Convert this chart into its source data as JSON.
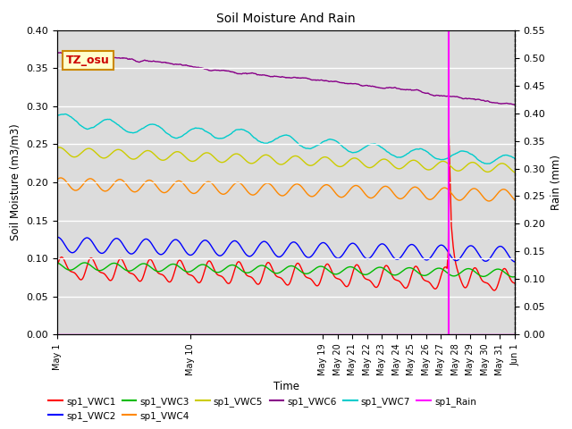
{
  "title": "Soil Moisture And Rain",
  "xlabel": "Time",
  "ylabel_left": "Soil Moisture (m3/m3)",
  "ylabel_right": "Rain (mm)",
  "ylim_left": [
    0.0,
    0.4
  ],
  "ylim_right": [
    0.0,
    0.55
  ],
  "bg_color": "#dcdcdc",
  "annotation_label": "TZ_osu",
  "vline_day": 26.5,
  "tick_days": [
    0,
    9,
    18,
    19,
    20,
    21,
    22,
    23,
    24,
    25,
    26,
    27,
    28,
    29,
    30,
    31
  ],
  "tick_labels": [
    "May 1",
    "May 10",
    "May 19",
    "May 20",
    "May 21",
    "May 22",
    "May 23",
    "May 24",
    "May 25",
    "May 26",
    "May 27",
    "May 28",
    "May 29",
    "May 30",
    "May 31",
    "Jun 1"
  ],
  "series_colors": {
    "sp1_VWC1": "#ff0000",
    "sp1_VWC2": "#0000ff",
    "sp1_VWC3": "#00bb00",
    "sp1_VWC4": "#ff8800",
    "sp1_VWC5": "#cccc00",
    "sp1_VWC6": "#880088",
    "sp1_VWC7": "#00cccc",
    "sp1_Rain": "#ff00ff"
  }
}
